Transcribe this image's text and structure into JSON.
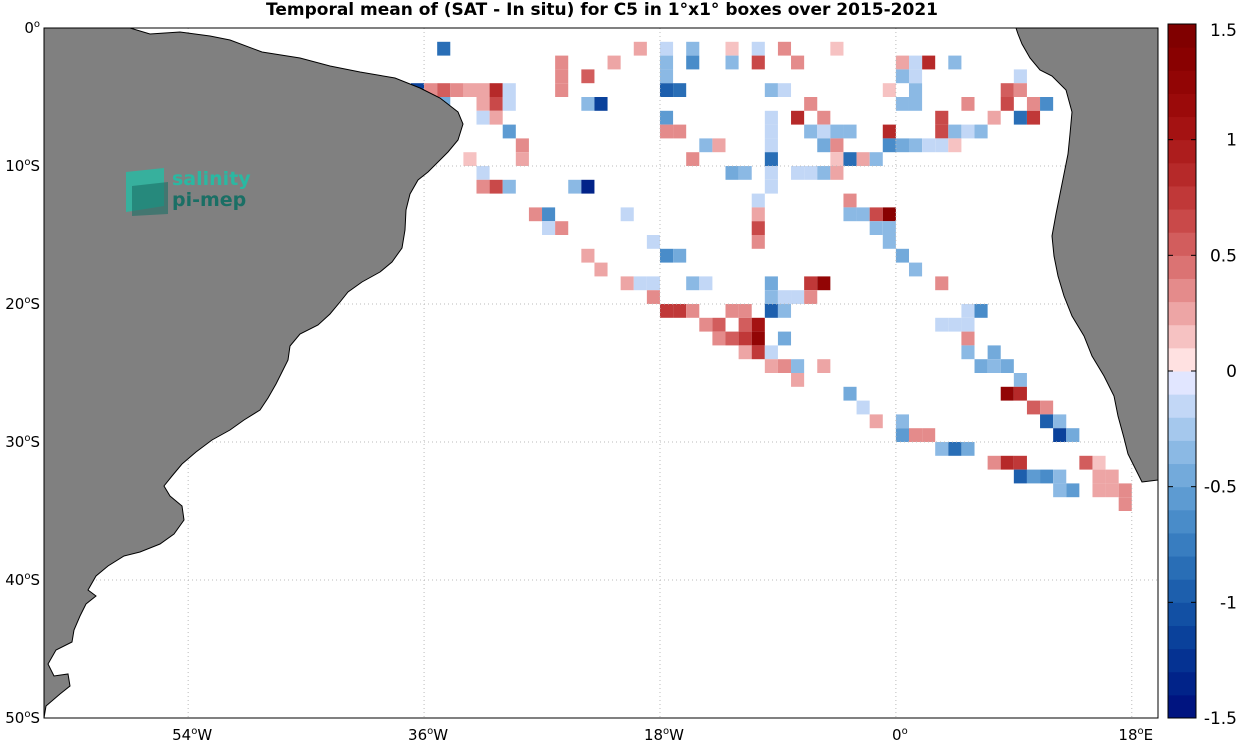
{
  "title": "Temporal mean of (SAT - In situ) for C5 in 1°x1° boxes over 2015-2021",
  "map": {
    "lon_range": [
      -65,
      20
    ],
    "lat_range": [
      -50,
      0
    ],
    "lat_ticks": [
      {
        "value": 0,
        "num": "0",
        "hem": "S",
        "show_hem": false
      },
      {
        "value": -10,
        "num": "10",
        "hem": "S",
        "show_hem": true
      },
      {
        "value": -20,
        "num": "20",
        "hem": "S",
        "show_hem": true
      },
      {
        "value": -30,
        "num": "30",
        "hem": "S",
        "show_hem": true
      },
      {
        "value": -40,
        "num": "40",
        "hem": "S",
        "show_hem": true
      },
      {
        "value": -50,
        "num": "50",
        "hem": "S",
        "show_hem": true
      }
    ],
    "lon_ticks": [
      {
        "value": -54,
        "num": "54",
        "hem": "W",
        "show_hem": true
      },
      {
        "value": -36,
        "num": "36",
        "hem": "W",
        "show_hem": true
      },
      {
        "value": -18,
        "num": "18",
        "hem": "W",
        "show_hem": true
      },
      {
        "value": 0,
        "num": "0",
        "hem": "",
        "show_hem": false
      },
      {
        "value": 18,
        "num": "18",
        "hem": "E",
        "show_hem": true
      }
    ],
    "land_color": "#808080",
    "grid_style": "dotted"
  },
  "colorbar": {
    "range": [
      -1.5,
      1.5
    ],
    "step": 0.1,
    "ticks": [
      {
        "value": 1.5,
        "label": "1.5"
      },
      {
        "value": 1,
        "label": "1"
      },
      {
        "value": 0.5,
        "label": "0.5"
      },
      {
        "value": 0,
        "label": "0"
      },
      {
        "value": -0.5,
        "label": "-0.5"
      },
      {
        "value": -1,
        "label": "-1"
      },
      {
        "value": -1.5,
        "label": "-1.5"
      }
    ],
    "colormap": "blue-white-red"
  },
  "logo": {
    "line1": "salinity",
    "line2": "pi-mep",
    "color1": "#2ab8a2",
    "color2": "#1a6f65"
  },
  "chart_data": {
    "type": "heatmap",
    "variable": "SAT - In situ",
    "units": "",
    "cell_size_deg": 1,
    "cells": [
      [
        -35,
        -1,
        -0.8
      ],
      [
        -20,
        -1,
        0.2
      ],
      [
        -18,
        -1,
        -0.2
      ],
      [
        -16,
        -1,
        -0.3
      ],
      [
        -13,
        -1,
        0.1
      ],
      [
        -11,
        -1,
        -0.2
      ],
      [
        -9,
        -1,
        0.3
      ],
      [
        -5,
        -1,
        0.1
      ],
      [
        -26,
        -2,
        0.3
      ],
      [
        -22,
        -2,
        0.2
      ],
      [
        -18,
        -2,
        -0.3
      ],
      [
        -16,
        -2,
        -0.7
      ],
      [
        -13,
        -2,
        -0.3
      ],
      [
        -11,
        -2,
        0.6
      ],
      [
        -8,
        -2,
        0.4
      ],
      [
        0,
        -2,
        0.2
      ],
      [
        2,
        -2,
        0.9
      ],
      [
        4,
        -2,
        -0.4
      ],
      [
        1,
        -2,
        -0.2
      ],
      [
        -26,
        -3,
        0.3
      ],
      [
        -24,
        -3,
        0.5
      ],
      [
        -18,
        -3,
        -0.4
      ],
      [
        0,
        -3,
        -0.3
      ],
      [
        1,
        -3,
        -0.2
      ],
      [
        9,
        -3,
        -0.2
      ],
      [
        -37,
        -4,
        -1.2
      ],
      [
        -36,
        -4,
        0.3
      ],
      [
        -35,
        -4,
        0.5
      ],
      [
        -34,
        -4,
        0.3
      ],
      [
        -33,
        -4,
        0.2
      ],
      [
        -32,
        -4,
        0.2
      ],
      [
        -31,
        -4,
        0.9
      ],
      [
        -30,
        -4,
        -0.2
      ],
      [
        -26,
        -4,
        0.3
      ],
      [
        -18,
        -4,
        -0.9
      ],
      [
        -17,
        -4,
        -0.8
      ],
      [
        -10,
        -4,
        -0.3
      ],
      [
        -9,
        -4,
        -0.2
      ],
      [
        -1,
        -4,
        0.1
      ],
      [
        1,
        -4,
        -0.3
      ],
      [
        8,
        -4,
        0.5
      ],
      [
        9,
        -4,
        0.3
      ],
      [
        -36,
        -5,
        0.4
      ],
      [
        -35,
        -5,
        -0.5
      ],
      [
        -32,
        -5,
        0.2
      ],
      [
        -31,
        -5,
        0.6
      ],
      [
        -30,
        -5,
        -0.2
      ],
      [
        -24,
        -5,
        -0.3
      ],
      [
        -23,
        -5,
        -1.1
      ],
      [
        -7,
        -5,
        0.3
      ],
      [
        0,
        -5,
        -0.4
      ],
      [
        1,
        -5,
        -0.3
      ],
      [
        5,
        -5,
        0.3
      ],
      [
        8,
        -5,
        0.6
      ],
      [
        10,
        -5,
        0.4
      ],
      [
        11,
        -5,
        -0.7
      ],
      [
        -32,
        -6,
        -0.2
      ],
      [
        -31,
        -6,
        0.2
      ],
      [
        -18,
        -6,
        -0.6
      ],
      [
        -10,
        -6,
        -0.2
      ],
      [
        -8,
        -6,
        0.9
      ],
      [
        -6,
        -6,
        0.3
      ],
      [
        3,
        -6,
        0.6
      ],
      [
        7,
        -6,
        0.2
      ],
      [
        9,
        -6,
        -0.8
      ],
      [
        10,
        -6,
        0.7
      ],
      [
        -30,
        -7,
        -0.6
      ],
      [
        -18,
        -7,
        0.4
      ],
      [
        -17,
        -7,
        0.4
      ],
      [
        -10,
        -7,
        -0.2
      ],
      [
        -7,
        -7,
        -0.4
      ],
      [
        -6,
        -7,
        -0.2
      ],
      [
        -5,
        -7,
        -0.3
      ],
      [
        -4,
        -7,
        -0.3
      ],
      [
        -1,
        -7,
        0.9
      ],
      [
        3,
        -7,
        0.6
      ],
      [
        4,
        -7,
        -0.3
      ],
      [
        5,
        -7,
        -0.2
      ],
      [
        6,
        -7,
        -0.3
      ],
      [
        -29,
        -8,
        0.3
      ],
      [
        -15,
        -8,
        -0.3
      ],
      [
        -14,
        -8,
        0.2
      ],
      [
        -10,
        -8,
        -0.2
      ],
      [
        -6,
        -8,
        -0.5
      ],
      [
        -5,
        -8,
        0.3
      ],
      [
        -1,
        -8,
        -0.7
      ],
      [
        0,
        -8,
        -0.5
      ],
      [
        1,
        -8,
        -0.3
      ],
      [
        2,
        -8,
        -0.2
      ],
      [
        3,
        -8,
        -0.2
      ],
      [
        4,
        -8,
        0.1
      ],
      [
        -33,
        -9,
        0.1
      ],
      [
        -29,
        -9,
        0.2
      ],
      [
        -16,
        -9,
        0.3
      ],
      [
        -10,
        -9,
        -0.8
      ],
      [
        -5,
        -9,
        0.1
      ],
      [
        -4,
        -9,
        -0.8
      ],
      [
        -3,
        -9,
        0.2
      ],
      [
        -2,
        -9,
        -0.4
      ],
      [
        -32,
        -10,
        -0.2
      ],
      [
        -13,
        -10,
        -0.5
      ],
      [
        -12,
        -10,
        -0.4
      ],
      [
        -10,
        -10,
        -0.2
      ],
      [
        -8,
        -10,
        -0.2
      ],
      [
        -7,
        -10,
        -0.1
      ],
      [
        -6,
        -10,
        -0.3
      ],
      [
        -5,
        -10,
        0.2
      ],
      [
        -32,
        -11,
        0.3
      ],
      [
        -31,
        -11,
        0.6
      ],
      [
        -30,
        -11,
        -0.4
      ],
      [
        -25,
        -11,
        -0.4
      ],
      [
        -24,
        -11,
        -1.4
      ],
      [
        -10,
        -11,
        -0.2
      ],
      [
        -11,
        -12,
        -0.2
      ],
      [
        -4,
        -12,
        0.4
      ],
      [
        -28,
        -13,
        0.3
      ],
      [
        -27,
        -13,
        -0.7
      ],
      [
        -21,
        -13,
        -0.1
      ],
      [
        -11,
        -13,
        0.2
      ],
      [
        -4,
        -13,
        -0.3
      ],
      [
        -3,
        -13,
        -0.3
      ],
      [
        -2,
        -13,
        0.6
      ],
      [
        -1,
        -13,
        1.4
      ],
      [
        -27,
        -14,
        -0.2
      ],
      [
        -26,
        -14,
        0.3
      ],
      [
        -11,
        -14,
        0.6
      ],
      [
        -2,
        -14,
        -0.3
      ],
      [
        -1,
        -14,
        -0.3
      ],
      [
        -19,
        -15,
        -0.2
      ],
      [
        -11,
        -15,
        0.4
      ],
      [
        -1,
        -15,
        -0.3
      ],
      [
        -24,
        -16,
        0.2
      ],
      [
        -18,
        -16,
        -0.7
      ],
      [
        -17,
        -16,
        -0.5
      ],
      [
        0,
        -16,
        -0.5
      ],
      [
        -23,
        -17,
        0.2
      ],
      [
        1,
        -17,
        -0.3
      ],
      [
        -21,
        -18,
        0.2
      ],
      [
        -20,
        -18,
        -0.1
      ],
      [
        -19,
        -18,
        -0.1
      ],
      [
        -16,
        -18,
        -0.3
      ],
      [
        -15,
        -18,
        -0.2
      ],
      [
        -10,
        -18,
        -0.5
      ],
      [
        -7,
        -18,
        0.8
      ],
      [
        -6,
        -18,
        1.3
      ],
      [
        3,
        -18,
        0.3
      ],
      [
        -19,
        -19,
        0.4
      ],
      [
        -10,
        -19,
        -0.3
      ],
      [
        -9,
        -19,
        -0.2
      ],
      [
        -8,
        -19,
        -0.1
      ],
      [
        -7,
        -19,
        0.3
      ],
      [
        -18,
        -20,
        0.8
      ],
      [
        -17,
        -20,
        0.8
      ],
      [
        -16,
        -20,
        0.4
      ],
      [
        -13,
        -20,
        0.3
      ],
      [
        -12,
        -20,
        0.3
      ],
      [
        -10,
        -20,
        -1.0
      ],
      [
        -9,
        -20,
        -0.4
      ],
      [
        5,
        -20,
        -0.2
      ],
      [
        6,
        -20,
        -0.7
      ],
      [
        -15,
        -21,
        0.3
      ],
      [
        -14,
        -21,
        0.5
      ],
      [
        -12,
        -21,
        0.5
      ],
      [
        -11,
        -21,
        1.0
      ],
      [
        3,
        -21,
        -0.2
      ],
      [
        4,
        -21,
        -0.2
      ],
      [
        5,
        -21,
        -0.1
      ],
      [
        -14,
        -22,
        0.4
      ],
      [
        -13,
        -22,
        0.5
      ],
      [
        -12,
        -22,
        0.7
      ],
      [
        -11,
        -22,
        1.2
      ],
      [
        -9,
        -22,
        -0.5
      ],
      [
        5,
        -22,
        0.3
      ],
      [
        -12,
        -23,
        0.2
      ],
      [
        -11,
        -23,
        0.8
      ],
      [
        -10,
        -23,
        -0.2
      ],
      [
        5,
        -23,
        -0.3
      ],
      [
        7,
        -23,
        -0.5
      ],
      [
        -10,
        -24,
        0.2
      ],
      [
        -9,
        -24,
        0.3
      ],
      [
        -8,
        -24,
        -0.4
      ],
      [
        -6,
        -24,
        0.2
      ],
      [
        6,
        -24,
        -0.5
      ],
      [
        7,
        -24,
        -0.4
      ],
      [
        8,
        -24,
        -0.5
      ],
      [
        -8,
        -25,
        0.2
      ],
      [
        9,
        -25,
        -0.3
      ],
      [
        -4,
        -26,
        -0.5
      ],
      [
        8,
        -26,
        1.3
      ],
      [
        9,
        -26,
        0.9
      ],
      [
        -3,
        -27,
        -0.2
      ],
      [
        10,
        -27,
        0.5
      ],
      [
        11,
        -27,
        0.4
      ],
      [
        -2,
        -28,
        0.2
      ],
      [
        0,
        -28,
        -0.4
      ],
      [
        11,
        -28,
        -1.0
      ],
      [
        12,
        -28,
        -0.4
      ],
      [
        0,
        -29,
        -0.6
      ],
      [
        1,
        -29,
        0.3
      ],
      [
        2,
        -29,
        0.3
      ],
      [
        12,
        -29,
        -1.1
      ],
      [
        13,
        -29,
        -0.5
      ],
      [
        3,
        -30,
        -0.3
      ],
      [
        4,
        -30,
        -0.8
      ],
      [
        5,
        -30,
        -0.5
      ],
      [
        7,
        -31,
        0.4
      ],
      [
        8,
        -31,
        0.9
      ],
      [
        9,
        -31,
        0.7
      ],
      [
        14,
        -31,
        0.5
      ],
      [
        15,
        -31,
        0.1
      ],
      [
        9,
        -32,
        -1.0
      ],
      [
        10,
        -32,
        -0.6
      ],
      [
        11,
        -32,
        -0.7
      ],
      [
        12,
        -32,
        -0.4
      ],
      [
        15,
        -32,
        0.2
      ],
      [
        16,
        -32,
        0.2
      ],
      [
        12,
        -33,
        -0.4
      ],
      [
        13,
        -33,
        -0.6
      ],
      [
        15,
        -33,
        0.2
      ],
      [
        16,
        -33,
        0.2
      ],
      [
        17,
        -33,
        0.3
      ],
      [
        17,
        -34,
        0.3
      ]
    ]
  }
}
